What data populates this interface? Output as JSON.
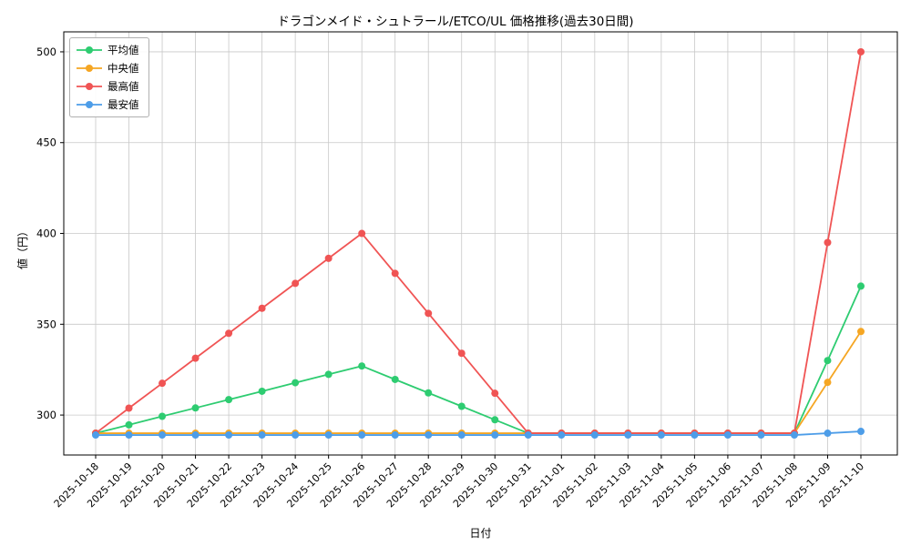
{
  "chart_data": {
    "type": "line",
    "title": "ドラゴンメイド・シュトラール/ETCO/UL 価格推移(過去30日間)",
    "xlabel": "日付",
    "ylabel": "値（円）",
    "ylim": [
      278,
      511
    ],
    "yticks": [
      300,
      350,
      400,
      450,
      500
    ],
    "grid": true,
    "legend_position": "upper-left",
    "grid_color": "#c8c8c8",
    "axis_color": "#000000",
    "categories": [
      "2025-10-18",
      "2025-10-19",
      "2025-10-20",
      "2025-10-21",
      "2025-10-22",
      "2025-10-23",
      "2025-10-24",
      "2025-10-25",
      "2025-10-26",
      "2025-10-27",
      "2025-10-28",
      "2025-10-29",
      "2025-10-30",
      "2025-10-31",
      "2025-11-01",
      "2025-11-02",
      "2025-11-03",
      "2025-11-04",
      "2025-11-05",
      "2025-11-06",
      "2025-11-07",
      "2025-11-08",
      "2025-11-09",
      "2025-11-10"
    ],
    "series": [
      {
        "key": "average",
        "name": "平均値",
        "color": "#2ecc71",
        "values": [
          290,
          294.6,
          299.3,
          303.9,
          308.5,
          313.1,
          317.8,
          322.4,
          327,
          319.6,
          312.2,
          304.8,
          297.4,
          290,
          290,
          290,
          290,
          290,
          290,
          290,
          290,
          290,
          330,
          371
        ]
      },
      {
        "key": "median",
        "name": "中央値",
        "color": "#f5a623",
        "values": [
          290,
          290,
          290,
          290,
          290,
          290,
          290,
          290,
          290,
          290,
          290,
          290,
          290,
          290,
          290,
          290,
          290,
          290,
          290,
          290,
          290,
          290,
          318,
          346
        ]
      },
      {
        "key": "max",
        "name": "最高値",
        "color": "#f05454",
        "values": [
          290,
          303.8,
          317.5,
          331.3,
          345,
          358.8,
          372.5,
          386.3,
          400,
          378,
          356,
          334,
          312,
          290,
          290,
          290,
          290,
          290,
          290,
          290,
          290,
          290,
          395,
          500
        ]
      },
      {
        "key": "min",
        "name": "最安値",
        "color": "#4d9de8",
        "values": [
          289,
          289,
          289,
          289,
          289,
          289,
          289,
          289,
          289,
          289,
          289,
          289,
          289,
          289,
          289,
          289,
          289,
          289,
          289,
          289,
          289,
          289,
          290,
          291
        ]
      }
    ]
  }
}
